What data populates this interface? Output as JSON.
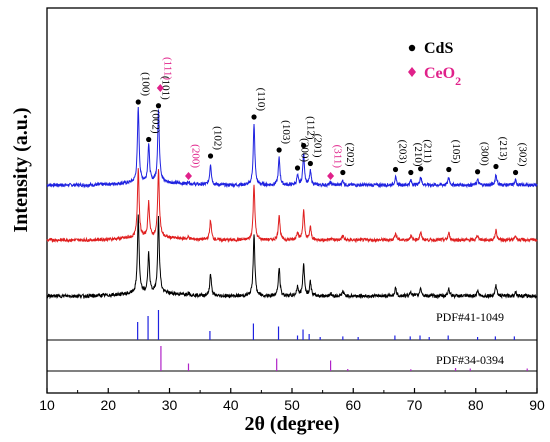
{
  "chart_data": {
    "type": "line",
    "xlabel": "2θ (degree)",
    "ylabel": "Intensity (a.u.)",
    "xlim": [
      10,
      90
    ],
    "xticks": [
      10,
      20,
      30,
      40,
      50,
      60,
      70,
      80,
      90
    ],
    "legend": {
      "placement": "top-right",
      "entries": [
        {
          "marker": "circle",
          "label": "CdS",
          "color": "#000000"
        },
        {
          "marker": "diamond",
          "label": "CeO2",
          "color": "#e0218a"
        }
      ]
    },
    "series_colors": [
      "#1f22e0",
      "#e01f1f",
      "#000000"
    ],
    "cds_peaks": [
      {
        "x": 24.9,
        "h": 1.0,
        "label": "(100)"
      },
      {
        "x": 26.6,
        "h": 0.5,
        "label": "(002)"
      },
      {
        "x": 28.2,
        "h": 0.95,
        "label": "(101)"
      },
      {
        "x": 36.7,
        "h": 0.28,
        "label": "(102)"
      },
      {
        "x": 43.8,
        "h": 0.8,
        "label": "(110)"
      },
      {
        "x": 47.9,
        "h": 0.36,
        "label": "(103)"
      },
      {
        "x": 50.9,
        "h": 0.12,
        "label": "(200)"
      },
      {
        "x": 51.9,
        "h": 0.42,
        "label": "(112)"
      },
      {
        "x": 53.0,
        "h": 0.18,
        "label": "(201)"
      },
      {
        "x": 58.3,
        "h": 0.06,
        "label": "(202)"
      },
      {
        "x": 66.9,
        "h": 0.1,
        "label": "(203)"
      },
      {
        "x": 69.4,
        "h": 0.06,
        "label": "(210)"
      },
      {
        "x": 71.0,
        "h": 0.11,
        "label": "(211)"
      },
      {
        "x": 75.6,
        "h": 0.1,
        "label": "(105)"
      },
      {
        "x": 80.3,
        "h": 0.07,
        "label": "(300)"
      },
      {
        "x": 83.3,
        "h": 0.14,
        "label": "(213)"
      },
      {
        "x": 86.5,
        "h": 0.06,
        "label": "(302)"
      }
    ],
    "ceo2_peaks": [
      {
        "x": 28.5,
        "label": "(111)"
      },
      {
        "x": 33.1,
        "label": "(200)"
      },
      {
        "x": 56.3,
        "label": "(311)"
      }
    ],
    "reference_patterns": [
      {
        "label": "PDF#41-1049",
        "color": "#1f22e0",
        "lines": [
          {
            "x": 24.8,
            "h": 0.6
          },
          {
            "x": 26.5,
            "h": 0.8
          },
          {
            "x": 28.2,
            "h": 1.0
          },
          {
            "x": 36.6,
            "h": 0.3
          },
          {
            "x": 43.7,
            "h": 0.55
          },
          {
            "x": 47.8,
            "h": 0.45
          },
          {
            "x": 50.9,
            "h": 0.15
          },
          {
            "x": 51.8,
            "h": 0.35
          },
          {
            "x": 52.8,
            "h": 0.2
          },
          {
            "x": 54.6,
            "h": 0.1
          },
          {
            "x": 58.3,
            "h": 0.12
          },
          {
            "x": 60.8,
            "h": 0.1
          },
          {
            "x": 66.8,
            "h": 0.15
          },
          {
            "x": 69.3,
            "h": 0.12
          },
          {
            "x": 70.9,
            "h": 0.15
          },
          {
            "x": 72.4,
            "h": 0.1
          },
          {
            "x": 75.5,
            "h": 0.15
          },
          {
            "x": 80.3,
            "h": 0.1
          },
          {
            "x": 83.2,
            "h": 0.12
          },
          {
            "x": 86.3,
            "h": 0.12
          }
        ]
      },
      {
        "label": "PDF#34-0394",
        "color": "#b023c8",
        "lines": [
          {
            "x": 28.6,
            "h": 1.0
          },
          {
            "x": 33.1,
            "h": 0.3
          },
          {
            "x": 47.5,
            "h": 0.5
          },
          {
            "x": 56.3,
            "h": 0.42
          },
          {
            "x": 59.1,
            "h": 0.08
          },
          {
            "x": 69.4,
            "h": 0.07
          },
          {
            "x": 76.7,
            "h": 0.12
          },
          {
            "x": 79.1,
            "h": 0.1
          },
          {
            "x": 88.4,
            "h": 0.1
          }
        ]
      }
    ]
  }
}
